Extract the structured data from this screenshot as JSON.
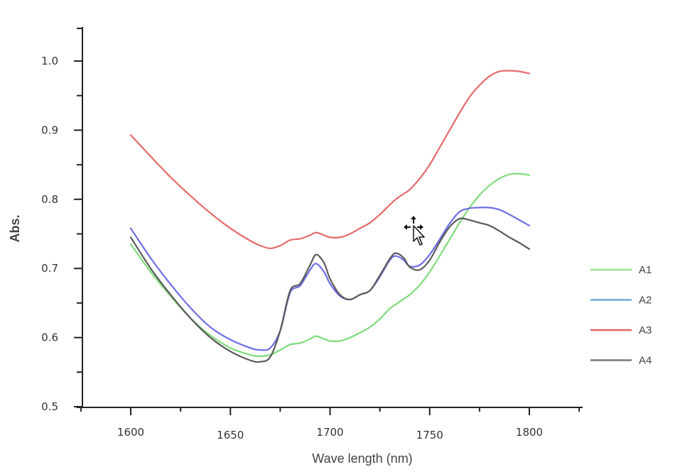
{
  "chart_data": {
    "type": "line",
    "title": "",
    "xlabel": "Wave length (nm)",
    "ylabel": "Abs.",
    "xlim": [
      1575,
      1830
    ],
    "ylim": [
      0.5,
      1.05
    ],
    "xticks": [
      1600,
      1650,
      1700,
      1750,
      1800
    ],
    "yticks": [
      0.5,
      0.6,
      0.7,
      0.8,
      0.9,
      1.0
    ],
    "ytick_labels": [
      "0.5",
      "0.6",
      "0.7",
      "0.8",
      "0.9",
      "1.0"
    ],
    "grid": false,
    "legend_position": "right",
    "x": [
      1600,
      1610,
      1620,
      1630,
      1640,
      1650,
      1660,
      1665,
      1670,
      1675,
      1680,
      1685,
      1690,
      1693,
      1697,
      1700,
      1705,
      1710,
      1715,
      1720,
      1725,
      1730,
      1733,
      1737,
      1740,
      1745,
      1750,
      1755,
      1760,
      1765,
      1770,
      1775,
      1780,
      1785,
      1790,
      1795,
      1800
    ],
    "series": [
      {
        "name": "A1",
        "color": "#7fdc7a",
        "values": [
          0.735,
          0.695,
          0.66,
          0.628,
          0.603,
          0.585,
          0.575,
          0.573,
          0.575,
          0.582,
          0.59,
          0.592,
          0.598,
          0.602,
          0.598,
          0.595,
          0.595,
          0.6,
          0.607,
          0.615,
          0.627,
          0.642,
          0.648,
          0.656,
          0.662,
          0.676,
          0.695,
          0.718,
          0.742,
          0.766,
          0.788,
          0.806,
          0.82,
          0.83,
          0.836,
          0.837,
          0.835
        ]
      },
      {
        "name": "A2",
        "color": "#6e6ee6",
        "values": [
          0.758,
          0.715,
          0.677,
          0.643,
          0.615,
          0.597,
          0.585,
          0.582,
          0.585,
          0.61,
          0.665,
          0.675,
          0.698,
          0.707,
          0.695,
          0.678,
          0.66,
          0.655,
          0.662,
          0.668,
          0.688,
          0.712,
          0.718,
          0.712,
          0.703,
          0.705,
          0.72,
          0.742,
          0.765,
          0.782,
          0.787,
          0.788,
          0.788,
          0.785,
          0.778,
          0.77,
          0.762
        ]
      },
      {
        "name": "A3",
        "color": "#e56b6b",
        "values": [
          0.893,
          0.862,
          0.832,
          0.805,
          0.78,
          0.758,
          0.74,
          0.733,
          0.729,
          0.733,
          0.741,
          0.743,
          0.748,
          0.752,
          0.748,
          0.745,
          0.745,
          0.75,
          0.758,
          0.766,
          0.778,
          0.792,
          0.8,
          0.808,
          0.814,
          0.83,
          0.85,
          0.875,
          0.9,
          0.925,
          0.948,
          0.965,
          0.978,
          0.985,
          0.986,
          0.985,
          0.982
        ]
      },
      {
        "name": "A4",
        "color": "#5a5a5a",
        "values": [
          0.745,
          0.7,
          0.662,
          0.628,
          0.6,
          0.58,
          0.567,
          0.565,
          0.572,
          0.61,
          0.668,
          0.678,
          0.705,
          0.72,
          0.708,
          0.685,
          0.662,
          0.655,
          0.662,
          0.668,
          0.69,
          0.714,
          0.722,
          0.715,
          0.702,
          0.698,
          0.712,
          0.738,
          0.76,
          0.772,
          0.77,
          0.766,
          0.762,
          0.754,
          0.745,
          0.737,
          0.728
        ]
      }
    ]
  },
  "cursor": {
    "icon": "move-cursor-icon"
  }
}
